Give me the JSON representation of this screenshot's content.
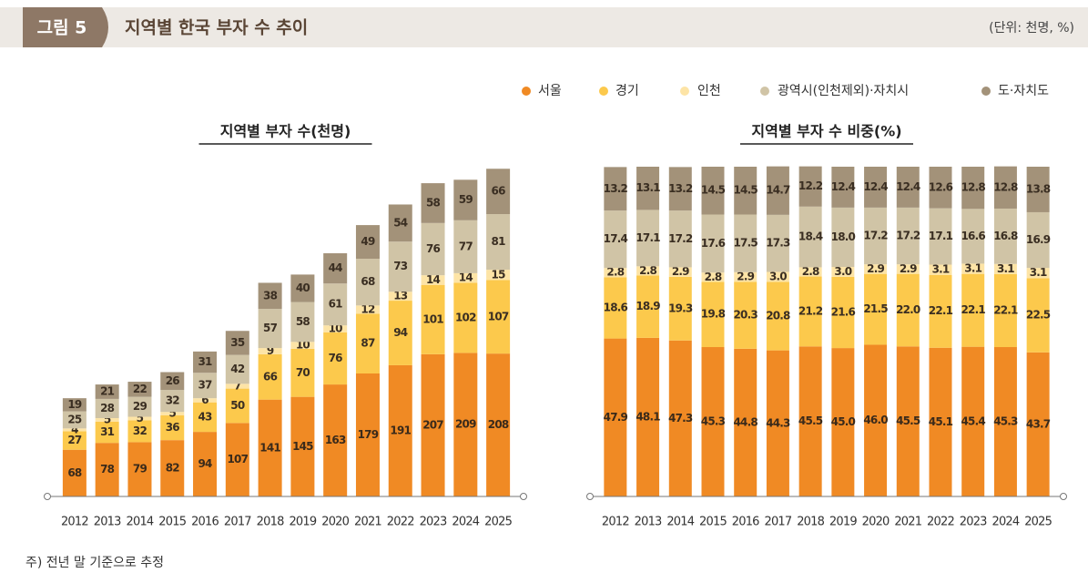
{
  "header": {
    "badge": "그림 5",
    "title": "지역별 한국 부자 수 추이",
    "unit": "(단위: 천명, %)"
  },
  "legend": [
    {
      "name": "서울",
      "color": "#f08a24"
    },
    {
      "name": "경기",
      "color": "#fcc94c"
    },
    {
      "name": "인천",
      "color": "#fde4a6"
    },
    {
      "name": "광역시(인천제외)·자치시",
      "color": "#d0c4a6"
    },
    {
      "name": "도·자치도",
      "color": "#a39279"
    }
  ],
  "chart_data": [
    {
      "type": "stacked_bar",
      "title": "지역별 부자 수(천명)",
      "categories": [
        "2012",
        "2013",
        "2014",
        "2015",
        "2016",
        "2017",
        "2018",
        "2019",
        "2020",
        "2021",
        "2022",
        "2023",
        "2024",
        "2025"
      ],
      "ylim": [
        0,
        480
      ],
      "series": [
        {
          "values": [
            68,
            78,
            79,
            82,
            94,
            107,
            141,
            145,
            163,
            179,
            191,
            207,
            209,
            208
          ]
        },
        {
          "values": [
            27,
            31,
            32,
            36,
            43,
            50,
            66,
            70,
            76,
            87,
            94,
            101,
            102,
            107
          ]
        },
        {
          "values": [
            4,
            5,
            5,
            5,
            6,
            7,
            9,
            10,
            10,
            12,
            13,
            14,
            14,
            15
          ]
        },
        {
          "values": [
            25,
            28,
            29,
            32,
            37,
            42,
            57,
            58,
            61,
            68,
            73,
            76,
            77,
            81
          ]
        },
        {
          "values": [
            19,
            21,
            22,
            26,
            31,
            35,
            38,
            40,
            44,
            49,
            54,
            58,
            59,
            66
          ]
        }
      ]
    },
    {
      "type": "stacked_bar",
      "title": "지역별 부자 수 비중(%)",
      "categories": [
        "2012",
        "2013",
        "2014",
        "2015",
        "2016",
        "2017",
        "2018",
        "2019",
        "2020",
        "2021",
        "2022",
        "2023",
        "2024",
        "2025"
      ],
      "ylim": [
        0,
        100
      ],
      "series": [
        {
          "values": [
            47.9,
            48.1,
            47.3,
            45.3,
            44.8,
            44.3,
            45.5,
            45.0,
            46.0,
            45.5,
            45.1,
            45.4,
            45.3,
            43.7
          ],
          "value_labels": [
            "47.9",
            "48.1",
            "47.3",
            "45.3",
            "44.8",
            "44.3",
            "45.5",
            "45.0",
            "46.0",
            "45.5",
            "45.1",
            "45.4",
            "45.3",
            "43.7"
          ]
        },
        {
          "values": [
            18.6,
            18.9,
            19.3,
            19.8,
            20.3,
            20.8,
            21.2,
            21.6,
            21.5,
            22.0,
            22.1,
            22.1,
            22.1,
            22.5
          ],
          "value_labels": [
            "18.6",
            "18.9",
            "19.3",
            "19.8",
            "20.3",
            "20.8",
            "21.2",
            "21.6",
            "21.5",
            "22.0",
            "22.1",
            "22.1",
            "22.1",
            "22.5"
          ]
        },
        {
          "values": [
            2.8,
            2.8,
            2.9,
            2.8,
            2.9,
            3.0,
            2.8,
            3.0,
            2.9,
            2.9,
            3.1,
            3.1,
            3.1,
            3.1
          ],
          "value_labels": [
            "2.8",
            "2.8",
            "2.9",
            "2.8",
            "2.9",
            "3.0",
            "2.8",
            "3.0",
            "2.9",
            "2.9",
            "3.1",
            "3.1",
            "3.1",
            "3.1"
          ]
        },
        {
          "values": [
            17.4,
            17.1,
            17.2,
            17.6,
            17.5,
            17.3,
            18.4,
            18.0,
            17.2,
            17.2,
            17.1,
            16.6,
            16.8,
            16.9
          ],
          "value_labels": [
            "17.4",
            "17.1",
            "17.2",
            "17.6",
            "17.5",
            "17.3",
            "18.4",
            "18.0",
            "17.2",
            "17.2",
            "17.1",
            "16.6",
            "16.8",
            "16.9"
          ]
        },
        {
          "values": [
            13.2,
            13.1,
            13.2,
            14.5,
            14.5,
            14.7,
            12.2,
            12.4,
            12.4,
            12.4,
            12.6,
            12.8,
            12.8,
            13.8
          ],
          "value_labels": [
            "13.2",
            "13.1",
            "13.2",
            "14.5",
            "14.5",
            "14.7",
            "12.2",
            "12.4",
            "12.4",
            "12.4",
            "12.6",
            "12.8",
            "12.8",
            "13.8"
          ]
        }
      ]
    }
  ],
  "note": "주) 전년 말 기준으로 추정"
}
